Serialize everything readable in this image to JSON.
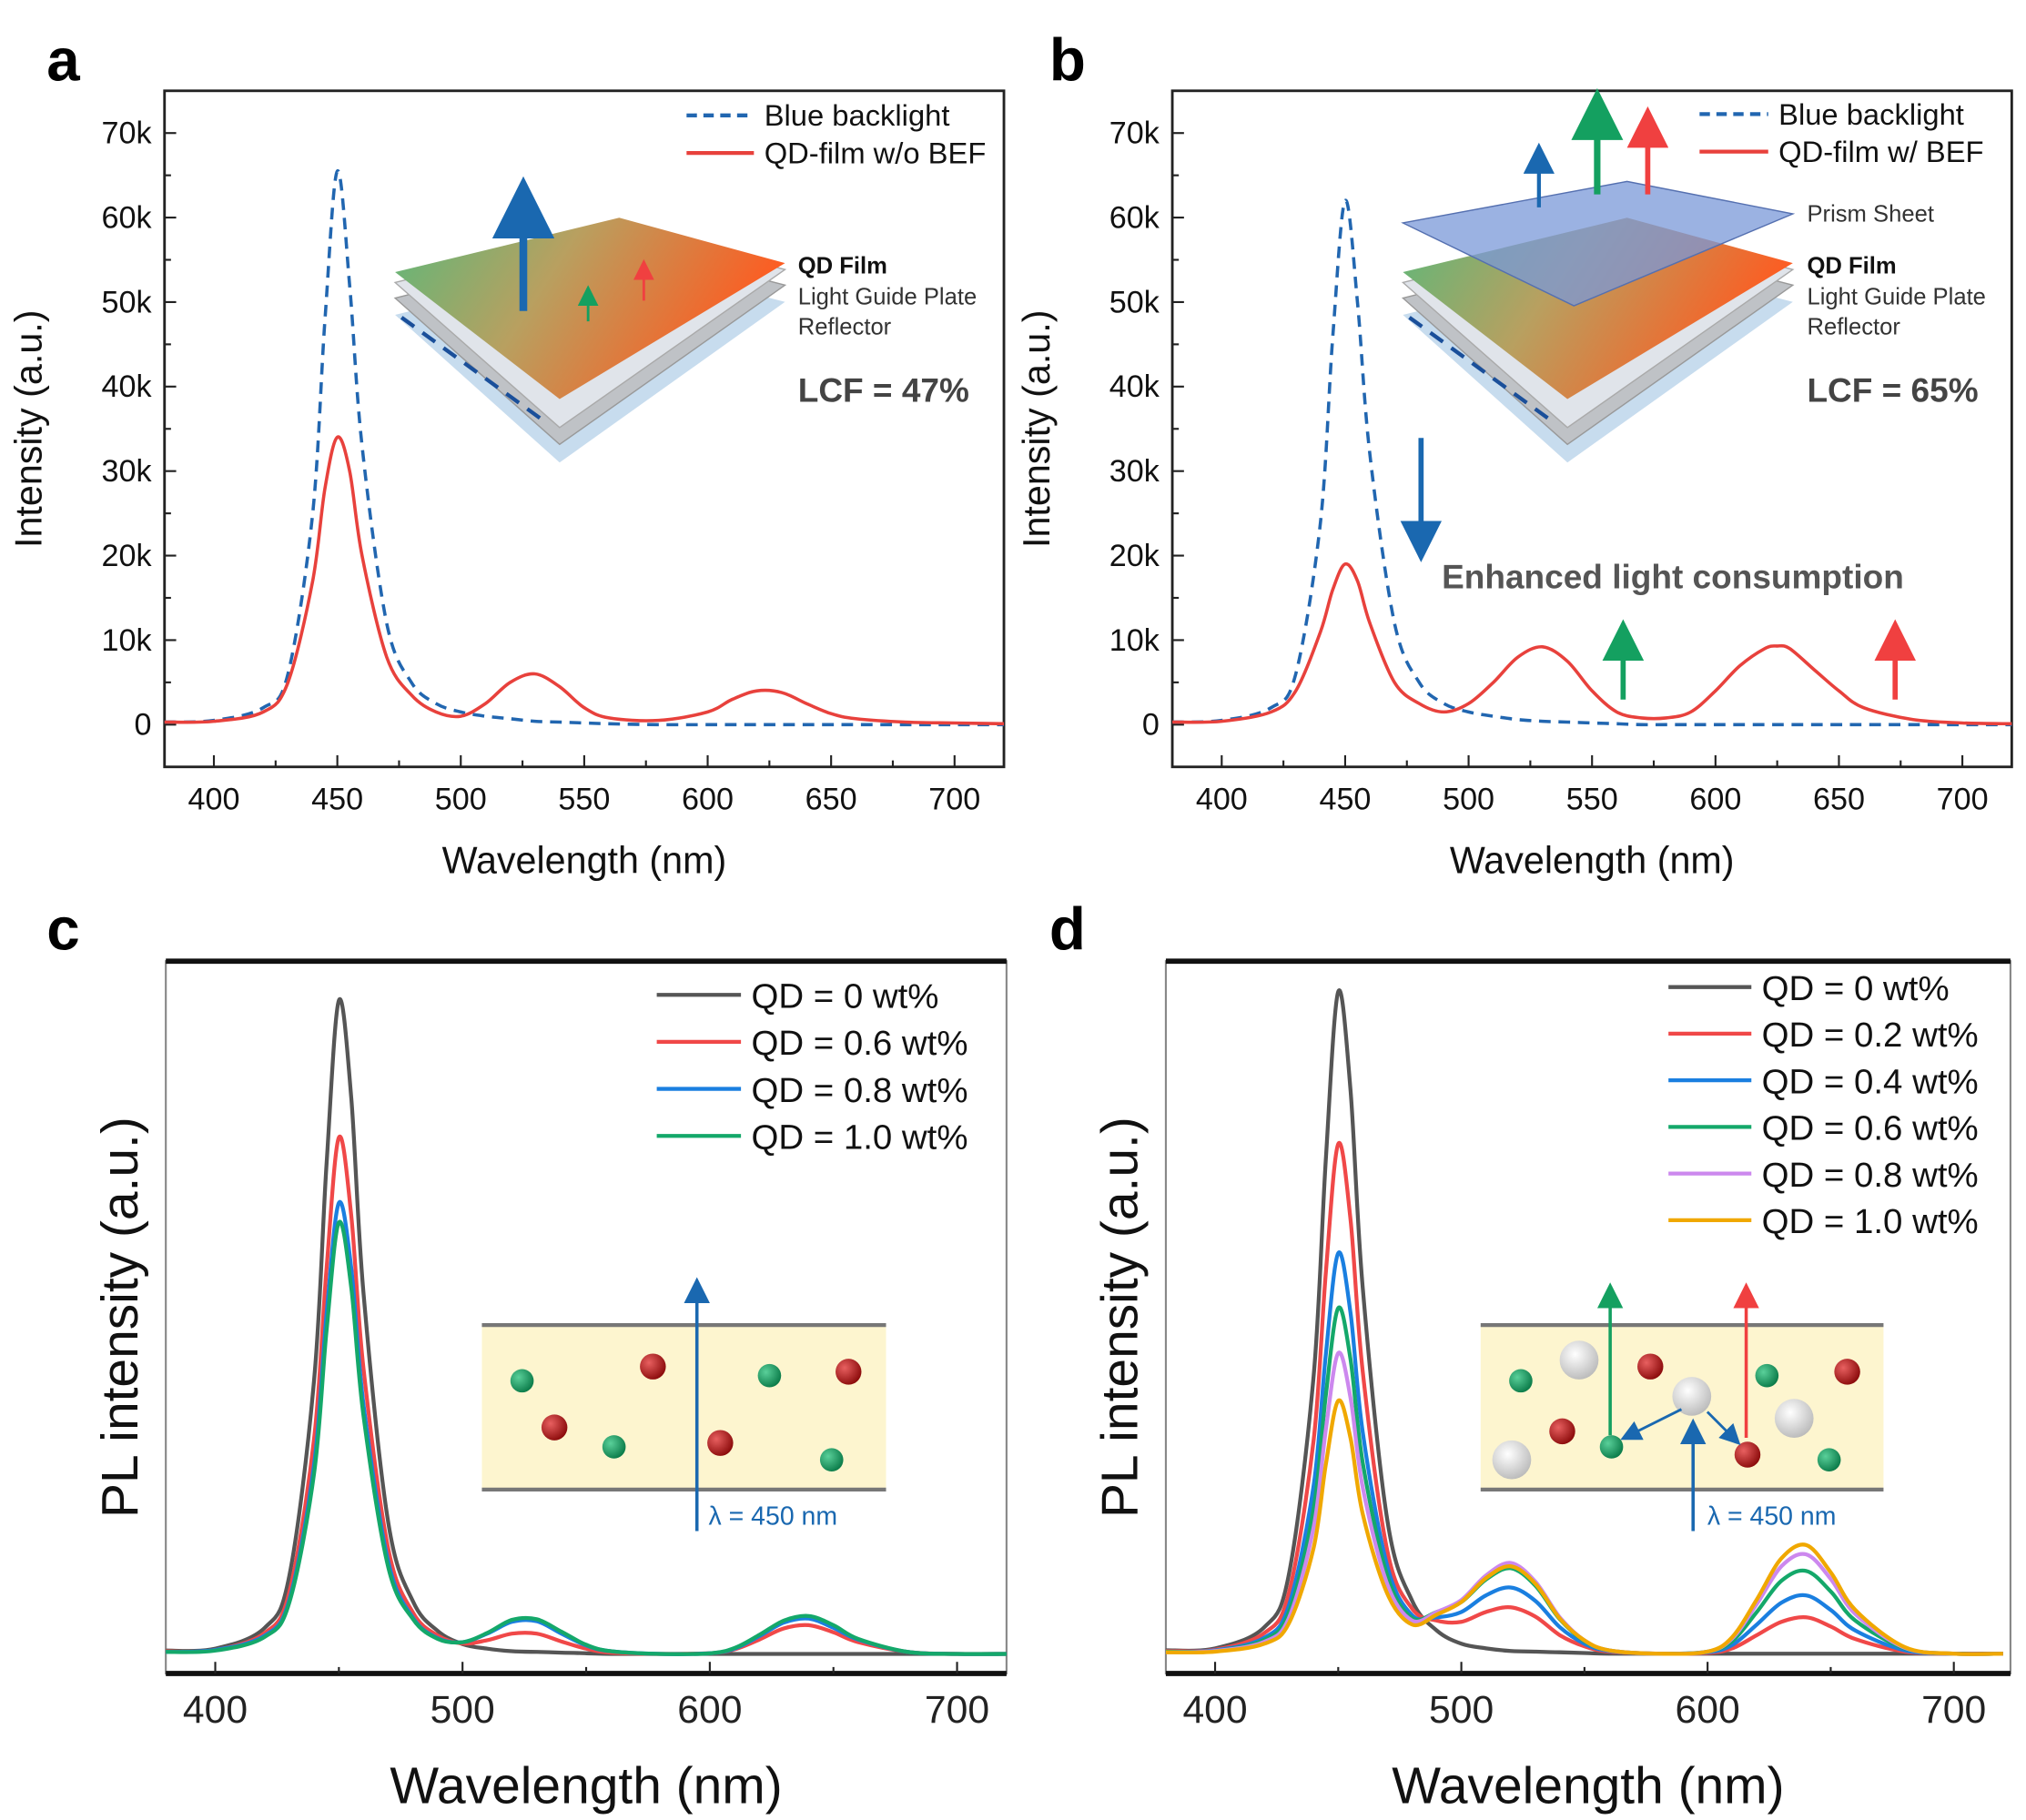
{
  "panels": {
    "a": "a",
    "b": "b",
    "c": "c",
    "d": "d"
  },
  "chart_data": [
    {
      "id": "a",
      "type": "line",
      "xlabel": "Wavelength (nm)",
      "ylabel": "Intensity (a.u.)",
      "xlim": [
        380,
        720
      ],
      "ylim": [
        -5,
        75
      ],
      "xticks": [
        400,
        450,
        500,
        550,
        600,
        650,
        700
      ],
      "yticks": [
        0,
        10,
        20,
        30,
        40,
        50,
        60,
        70
      ],
      "yticklabels": [
        "0",
        "10k",
        "20k",
        "30k",
        "40k",
        "50k",
        "60k",
        "70k"
      ],
      "legend_position": "top-right",
      "x": [
        380,
        400,
        420,
        430,
        440,
        445,
        450,
        455,
        460,
        470,
        480,
        490,
        500,
        510,
        520,
        530,
        540,
        550,
        560,
        580,
        600,
        610,
        620,
        630,
        640,
        650,
        660,
        680,
        700,
        720
      ],
      "series": [
        {
          "name": "Blue backlight",
          "color": "#2166b0",
          "dash": true,
          "values": [
            0.3,
            0.5,
            2,
            6,
            25,
            48,
            65.5,
            52,
            33,
            12,
            5,
            2.5,
            1.5,
            1,
            0.7,
            0.4,
            0.3,
            0.2,
            0.1,
            0,
            0,
            0,
            0,
            0,
            0,
            0,
            0,
            0,
            0,
            0
          ]
        },
        {
          "name": "QD-film w/o BEF",
          "color": "#e8413c",
          "dash": false,
          "values": [
            0.3,
            0.4,
            1.5,
            5,
            17,
            28,
            34,
            30,
            20,
            8,
            3.5,
            1.5,
            1,
            2.5,
            5,
            6,
            4.5,
            2,
            0.8,
            0.5,
            1.5,
            3,
            4,
            3.8,
            2.5,
            1.3,
            0.7,
            0.3,
            0.2,
            0.1
          ]
        }
      ]
    },
    {
      "id": "b",
      "type": "line",
      "xlabel": "Wavelength (nm)",
      "ylabel": "Intensity (a.u.)",
      "xlim": [
        380,
        720
      ],
      "ylim": [
        -5,
        75
      ],
      "xticks": [
        400,
        450,
        500,
        550,
        600,
        650,
        700
      ],
      "yticks": [
        0,
        10,
        20,
        30,
        40,
        50,
        60,
        70
      ],
      "yticklabels": [
        "0",
        "10k",
        "20k",
        "30k",
        "40k",
        "50k",
        "60k",
        "70k"
      ],
      "legend_position": "top-right",
      "x": [
        380,
        400,
        420,
        430,
        440,
        445,
        450,
        455,
        460,
        470,
        480,
        490,
        500,
        510,
        520,
        530,
        540,
        550,
        560,
        570,
        580,
        590,
        600,
        610,
        620,
        625,
        630,
        640,
        650,
        660,
        680,
        700,
        720
      ],
      "series": [
        {
          "name": "Blue backlight",
          "color": "#2166b0",
          "dash": true,
          "values": [
            0.3,
            0.5,
            2,
            6,
            24,
            46,
            62,
            50,
            32,
            12,
            5,
            2.5,
            1.5,
            1,
            0.6,
            0.4,
            0.3,
            0.2,
            0.1,
            0,
            0,
            0,
            0,
            0,
            0,
            0,
            0,
            0,
            0,
            0,
            0,
            0,
            0
          ]
        },
        {
          "name": "QD-film w/ BEF",
          "color": "#e8413c",
          "dash": false,
          "values": [
            0.3,
            0.4,
            1.5,
            4,
            11,
            16,
            19,
            17,
            12,
            5,
            2.5,
            1.5,
            2.5,
            5,
            8,
            9.2,
            7.5,
            4,
            1.5,
            0.8,
            0.8,
            1.5,
            4,
            7,
            9,
            9.3,
            9,
            6.5,
            4,
            2,
            0.6,
            0.2,
            0.1
          ]
        }
      ]
    },
    {
      "id": "c",
      "type": "line",
      "xlabel": "Wavelength (nm)",
      "ylabel": "PL intensity (a.u.)",
      "xlim": [
        380,
        720
      ],
      "ylim": [
        -3,
        106
      ],
      "xticks": [
        400,
        500,
        600,
        700
      ],
      "legend_position": "top-right",
      "x": [
        380,
        400,
        420,
        430,
        440,
        445,
        450,
        455,
        460,
        470,
        480,
        490,
        500,
        510,
        520,
        530,
        540,
        550,
        560,
        580,
        600,
        610,
        620,
        630,
        640,
        650,
        660,
        680,
        700,
        720
      ],
      "series": [
        {
          "name": "QD = 0 wt%",
          "color": "#555555",
          "values": [
            0.5,
            0.8,
            4,
            12,
            42,
            75,
            100,
            85,
            55,
            20,
            8,
            3.5,
            1.5,
            0.8,
            0.4,
            0.3,
            0.2,
            0.1,
            0,
            0,
            0,
            0,
            0,
            0,
            0,
            0,
            0,
            0,
            0,
            0
          ]
        },
        {
          "name": "QD = 0.6 wt%",
          "color": "#f04848",
          "values": [
            0.4,
            0.6,
            3.2,
            9.5,
            33,
            59,
            79,
            67,
            43.5,
            16,
            6.3,
            2.8,
            1.6,
            2.1,
            3.1,
            3.1,
            1.9,
            0.8,
            0.2,
            0,
            0.1,
            0.7,
            2.2,
            3.9,
            4.4,
            3.3,
            1.8,
            0.3,
            0,
            0
          ]
        },
        {
          "name": "QD = 0.8 wt%",
          "color": "#1a7fe0",
          "values": [
            0.3,
            0.6,
            2.8,
            8.3,
            29,
            52,
            69,
            59,
            38,
            14,
            5.5,
            2.4,
            1.8,
            3.1,
            4.9,
            5,
            3.1,
            1.3,
            0.4,
            0,
            0.1,
            0.8,
            2.7,
            4.8,
            5.4,
            4,
            2.2,
            0.3,
            0,
            0
          ]
        },
        {
          "name": "QD = 1.0 wt%",
          "color": "#14a86a",
          "values": [
            0.3,
            0.5,
            2.6,
            7.9,
            27.7,
            49.5,
            66,
            56,
            36.3,
            13.2,
            5.3,
            2.3,
            1.8,
            3.2,
            5.2,
            5.3,
            3.4,
            1.4,
            0.4,
            0,
            0.1,
            0.9,
            2.9,
            5.1,
            5.8,
            4.4,
            2.3,
            0.3,
            0,
            0
          ]
        }
      ],
      "inset": {
        "excitation_label": "λ = 450 nm"
      }
    },
    {
      "id": "d",
      "type": "line",
      "xlabel": "Wavelength (nm)",
      "ylabel": "PL intensity (a.u.)",
      "xlim": [
        380,
        723
      ],
      "ylim": [
        -3,
        104.6
      ],
      "xticks": [
        400,
        500,
        600,
        700
      ],
      "legend_position": "top-right",
      "x": [
        380,
        400,
        420,
        430,
        440,
        445,
        450,
        455,
        460,
        470,
        480,
        490,
        500,
        510,
        520,
        530,
        540,
        550,
        560,
        580,
        600,
        610,
        620,
        630,
        640,
        650,
        660,
        680,
        700,
        720
      ],
      "series": [
        {
          "name": "QD = 0 wt%",
          "color": "#555555",
          "values": [
            0.5,
            0.8,
            4,
            12,
            42,
            75,
            100,
            85,
            55,
            20,
            8,
            3.5,
            1.5,
            0.8,
            0.4,
            0.3,
            0.2,
            0.1,
            0,
            0,
            0,
            0,
            0,
            0,
            0,
            0,
            0,
            0,
            0,
            0
          ]
        },
        {
          "name": "QD = 0.2 wt%",
          "color": "#f04848",
          "values": [
            0.4,
            0.6,
            3.1,
            9.2,
            32.3,
            57.8,
            77,
            65.5,
            42.4,
            15.4,
            6.8,
            5,
            4.8,
            6.3,
            7,
            5.6,
            2.8,
            1.1,
            0.3,
            0,
            0.1,
            0.8,
            2.8,
            4.8,
            5.5,
            4.1,
            2.2,
            0.3,
            0,
            0
          ]
        },
        {
          "name": "QD = 0.4 wt%",
          "color": "#1a7fe0",
          "values": [
            0.3,
            0.5,
            2.4,
            7.3,
            25.4,
            45.4,
            60.5,
            51.4,
            33.3,
            13.1,
            5.8,
            5.5,
            6.3,
            8.8,
            10,
            8,
            4,
            1.5,
            0.4,
            0,
            0.2,
            1.3,
            4.4,
            7.7,
            8.8,
            6.6,
            3.5,
            0.5,
            0,
            0
          ]
        },
        {
          "name": "QD = 0.6 wt%",
          "color": "#14a86a",
          "values": [
            0.3,
            0.4,
            2.1,
            6.3,
            21.9,
            39.2,
            52.2,
            44.4,
            28.7,
            11.7,
            5.4,
            6.3,
            7.8,
            11.2,
            12.9,
            10.3,
            5.2,
            1.9,
            0.5,
            0,
            0.3,
            1.9,
            6.3,
            11,
            12.5,
            9.4,
            5,
            0.8,
            0,
            0
          ]
        },
        {
          "name": "QD = 0.8 wt%",
          "color": "#cc88ee",
          "values": [
            0.2,
            0.4,
            1.8,
            5.4,
            19.1,
            34,
            45.4,
            38.6,
            25,
            10.4,
            5,
            6.3,
            8.1,
            11.8,
            13.7,
            10.9,
            5.5,
            2,
            0.5,
            0,
            0.3,
            2.3,
            7.5,
            13.2,
            15,
            11.3,
            6,
            0.9,
            0,
            0
          ]
        },
        {
          "name": "QD = 1.0 wt%",
          "color": "#f0a800",
          "values": [
            0.2,
            0.3,
            1.5,
            4.6,
            16,
            28.7,
            38.2,
            32.5,
            21,
            9,
            4.4,
            5.9,
            7.8,
            11.4,
            13.2,
            10.6,
            5.3,
            2,
            0.5,
            0,
            0.3,
            2.5,
            8.2,
            14.4,
            16.4,
            12.3,
            6.6,
            1,
            0,
            0
          ]
        }
      ],
      "inset": {
        "excitation_label": "λ = 450 nm"
      }
    }
  ],
  "insets": {
    "a": {
      "qd_film": "QD Film",
      "lgp": "Light Guide Plate",
      "reflector": "Reflector",
      "lcf": "LCF = 47%"
    },
    "b": {
      "prism": "Prism Sheet",
      "qd_film": "QD Film",
      "lgp": "Light Guide Plate",
      "reflector": "Reflector",
      "lcf": "LCF = 65%",
      "annotation": "Enhanced light consumption"
    }
  }
}
